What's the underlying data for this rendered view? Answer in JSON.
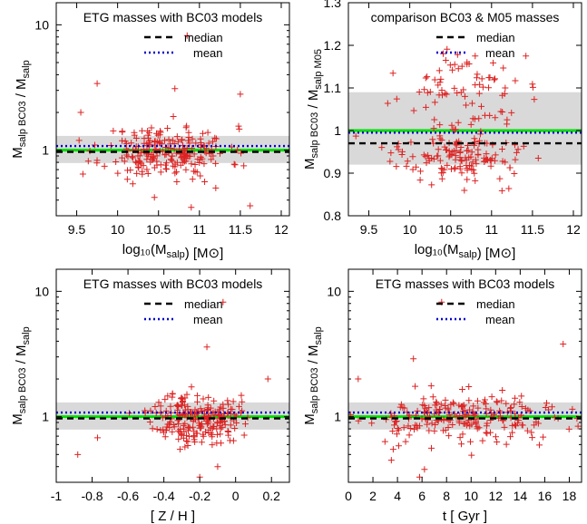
{
  "colors": {
    "band": "#d9d9d9",
    "unity": "#00dd00",
    "median": "#000000",
    "mean": "#0000cc",
    "points": "#dd2222"
  },
  "legend_labels": {
    "median": "median",
    "mean": "mean"
  },
  "chart_data": [
    {
      "id": "p1",
      "type": "scatter",
      "title": "ETG masses with BC03 models",
      "xlabel": "log₁₀(M_salp)  [M⊙]",
      "ylabel": "M_salp BC03 / M_salp",
      "yscale": "log",
      "xlim": [
        9.25,
        12.1
      ],
      "ylim": [
        0.3,
        15
      ],
      "xticks": [
        9.5,
        10,
        10.5,
        11,
        11.5,
        12
      ],
      "xtick_labels": [
        "9.5",
        "10",
        "10.5",
        "11",
        "11.5",
        "12"
      ],
      "yticks": [
        1,
        10
      ],
      "ytick_labels": [
        "1",
        "10"
      ],
      "band": [
        0.79,
        1.3
      ],
      "unity": 1.0,
      "median": 0.97,
      "mean": 1.08,
      "legend": "top-right",
      "seed": 11,
      "n_points": 230,
      "x_center": 10.6,
      "x_spread": 0.38,
      "y_center": 0.97,
      "y_spread": 0.17,
      "extra_points": [
        [
          10.85,
          8.2
        ],
        [
          9.75,
          3.4
        ],
        [
          10.7,
          3.1
        ],
        [
          11.5,
          2.8
        ],
        [
          9.55,
          2.0
        ],
        [
          10.45,
          0.42
        ],
        [
          11.2,
          0.5
        ],
        [
          11.62,
          0.36
        ],
        [
          10.9,
          0.35
        ]
      ]
    },
    {
      "id": "p2",
      "type": "scatter",
      "title": "comparison BC03 & M05 masses",
      "xlabel": "log₁₀(M_salp)  [M⊙]",
      "ylabel": "M_salp BC03 / M_salp M05",
      "yscale": "linear",
      "xlim": [
        9.25,
        12.1
      ],
      "ylim": [
        0.8,
        1.3
      ],
      "xticks": [
        9.5,
        10,
        10.5,
        11,
        11.5,
        12
      ],
      "xtick_labels": [
        "9.5",
        "10",
        "10.5",
        "11",
        "11.5",
        "12"
      ],
      "yticks": [
        0.8,
        0.9,
        1.0,
        1.1,
        1.2,
        1.3
      ],
      "ytick_labels": [
        "0.8",
        "0.9",
        "1",
        "1.1",
        "1.2",
        "1.3"
      ],
      "band": [
        0.92,
        1.09
      ],
      "unity": 1.0,
      "median": 0.97,
      "mean": 0.995,
      "legend": "top-right",
      "seed": 23,
      "n_points": 220,
      "x_center": 10.65,
      "x_spread": 0.36,
      "clusters": [
        [
          0.94,
          0.03,
          0.55
        ],
        [
          1.1,
          0.035,
          0.3
        ],
        [
          1.0,
          0.04,
          0.15
        ]
      ],
      "extra_points": [
        [
          10.8,
          1.175
        ],
        [
          11.42,
          1.175
        ],
        [
          10.55,
          1.155
        ],
        [
          10.7,
          0.885
        ]
      ]
    },
    {
      "id": "p3",
      "type": "scatter",
      "title": "ETG masses with BC03 models",
      "xlabel": "[ Z / H ]",
      "ylabel": "M_salp BC03 / M_salp",
      "yscale": "log",
      "xlim": [
        -1.0,
        0.3
      ],
      "ylim": [
        0.3,
        15
      ],
      "xticks": [
        -1,
        -0.8,
        -0.6,
        -0.4,
        -0.2,
        0,
        0.2
      ],
      "xtick_labels": [
        "-1",
        "-0.8",
        "-0.6",
        "-0.4",
        "-0.2",
        "0",
        "0.2"
      ],
      "yticks": [
        1,
        10
      ],
      "ytick_labels": [
        "1",
        "10"
      ],
      "band": [
        0.79,
        1.3
      ],
      "unity": 1.0,
      "median": 0.97,
      "mean": 1.08,
      "legend": "top-right",
      "seed": 37,
      "n_points": 230,
      "x_center": -0.22,
      "x_spread": 0.12,
      "y_center": 0.97,
      "y_spread": 0.17,
      "extra_points": [
        [
          -0.07,
          8.2
        ],
        [
          -0.88,
          0.5
        ],
        [
          -0.77,
          0.68
        ],
        [
          0.18,
          2.0
        ],
        [
          -0.16,
          3.6
        ],
        [
          -0.2,
          0.33
        ],
        [
          -0.1,
          0.4
        ]
      ]
    },
    {
      "id": "p4",
      "type": "scatter",
      "title": "ETG masses with BC03 models",
      "xlabel": "t  [ Gyr ]",
      "ylabel": "M_salp BC03 / M_salp",
      "yscale": "log",
      "xlim": [
        0,
        19
      ],
      "ylim": [
        0.3,
        15
      ],
      "xticks": [
        0,
        2,
        4,
        6,
        8,
        10,
        12,
        14,
        16,
        18
      ],
      "xtick_labels": [
        "0",
        "2",
        "4",
        "6",
        "8",
        "10",
        "12",
        "14",
        "16",
        "18"
      ],
      "yticks": [
        1,
        10
      ],
      "ytick_labels": [
        "1",
        "10"
      ],
      "band": [
        0.79,
        1.3
      ],
      "unity": 1.0,
      "median": 0.97,
      "mean": 1.08,
      "legend": "top-right",
      "seed": 53,
      "n_points": 230,
      "x_center": 9.5,
      "x_spread": 4.5,
      "y_center": 0.97,
      "y_spread": 0.17,
      "extra_points": [
        [
          7.6,
          8.2
        ],
        [
          17.5,
          3.8
        ],
        [
          5.3,
          2.9
        ],
        [
          0.8,
          2.0
        ],
        [
          5.8,
          0.33
        ],
        [
          6.2,
          0.38
        ],
        [
          3.5,
          0.45
        ]
      ]
    }
  ]
}
